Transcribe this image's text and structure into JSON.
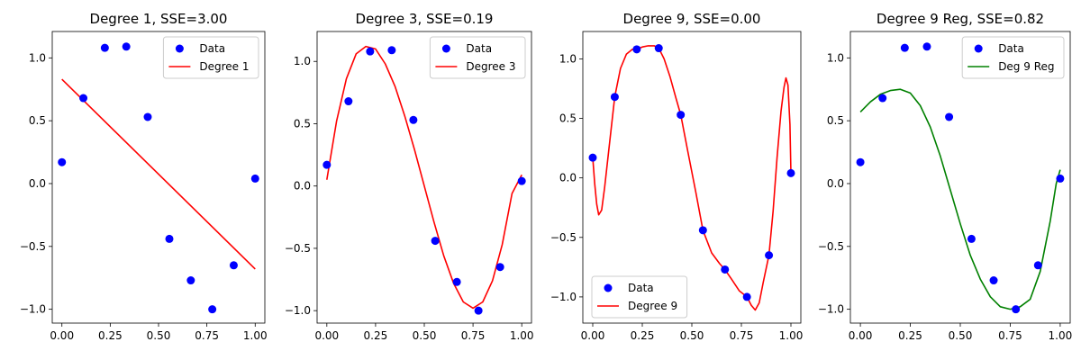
{
  "chart_data": [
    {
      "type": "scatter",
      "title": "Degree 1, SSE=3.00",
      "xlim": [
        -0.05,
        1.05
      ],
      "ylim": [
        -1.11,
        1.21
      ],
      "x_ticks": [
        "0.00",
        "0.25",
        "0.50",
        "0.75",
        "1.00"
      ],
      "y_ticks": [
        "-1.0",
        "-0.5",
        "0.0",
        "0.5",
        "1.0"
      ],
      "legend_position": "upper right",
      "series": [
        {
          "name": "Data",
          "kind": "scatter",
          "color": "#0000ff",
          "x": [
            0.0,
            0.111,
            0.222,
            0.333,
            0.444,
            0.556,
            0.667,
            0.778,
            0.889,
            1.0
          ],
          "y": [
            0.17,
            0.68,
            1.08,
            1.09,
            0.53,
            -0.44,
            -0.77,
            -1.0,
            -0.65,
            0.04
          ]
        },
        {
          "name": "Degree 1",
          "kind": "line",
          "color": "#ff0000",
          "x": [
            0.0,
            1.0
          ],
          "y": [
            0.83,
            -0.68
          ]
        }
      ]
    },
    {
      "type": "scatter",
      "title": "Degree 3, SSE=0.19",
      "xlim": [
        -0.05,
        1.05
      ],
      "ylim": [
        -1.1,
        1.24
      ],
      "x_ticks": [
        "0.00",
        "0.25",
        "0.50",
        "0.75",
        "1.00"
      ],
      "y_ticks": [
        "-1.0",
        "-0.5",
        "0.0",
        "0.5",
        "1.0"
      ],
      "legend_position": "upper right",
      "series": [
        {
          "name": "Data",
          "kind": "scatter",
          "color": "#0000ff",
          "x": [
            0.0,
            0.111,
            0.222,
            0.333,
            0.444,
            0.556,
            0.667,
            0.778,
            0.889,
            1.0
          ],
          "y": [
            0.17,
            0.68,
            1.08,
            1.09,
            0.53,
            -0.44,
            -0.77,
            -1.0,
            -0.65,
            0.04
          ]
        },
        {
          "name": "Degree 3",
          "kind": "line",
          "color": "#ff0000",
          "x": [
            0.0,
            0.05,
            0.1,
            0.15,
            0.2,
            0.25,
            0.3,
            0.35,
            0.4,
            0.45,
            0.5,
            0.55,
            0.6,
            0.65,
            0.7,
            0.75,
            0.8,
            0.85,
            0.9,
            0.95,
            1.0
          ],
          "y": [
            0.05,
            0.52,
            0.86,
            1.06,
            1.12,
            1.1,
            0.98,
            0.8,
            0.56,
            0.29,
            0.0,
            -0.29,
            -0.56,
            -0.78,
            -0.93,
            -0.98,
            -0.93,
            -0.76,
            -0.47,
            -0.06,
            0.09
          ]
        }
      ]
    },
    {
      "type": "scatter",
      "title": "Degree 9, SSE=0.00",
      "xlim": [
        -0.05,
        1.05
      ],
      "ylim": [
        -1.22,
        1.23
      ],
      "x_ticks": [
        "0.00",
        "0.25",
        "0.50",
        "0.75",
        "1.00"
      ],
      "y_ticks": [
        "-1.0",
        "-0.5",
        "0.0",
        "0.5",
        "1.0"
      ],
      "legend_position": "lower left",
      "series": [
        {
          "name": "Data",
          "kind": "scatter",
          "color": "#0000ff",
          "x": [
            0.0,
            0.111,
            0.222,
            0.333,
            0.444,
            0.556,
            0.667,
            0.778,
            0.889,
            1.0
          ],
          "y": [
            0.17,
            0.68,
            1.08,
            1.09,
            0.53,
            -0.44,
            -0.77,
            -1.0,
            -0.65,
            0.04
          ]
        },
        {
          "name": "Degree 9",
          "kind": "line",
          "color": "#ff0000",
          "x": [
            0.0,
            0.01,
            0.02,
            0.03,
            0.045,
            0.06,
            0.08,
            0.111,
            0.14,
            0.17,
            0.2,
            0.222,
            0.25,
            0.28,
            0.31,
            0.333,
            0.36,
            0.39,
            0.42,
            0.444,
            0.48,
            0.52,
            0.556,
            0.6,
            0.64,
            0.667,
            0.7,
            0.74,
            0.778,
            0.8,
            0.82,
            0.84,
            0.86,
            0.889,
            0.91,
            0.93,
            0.95,
            0.965,
            0.975,
            0.985,
            0.995,
            1.0
          ],
          "y": [
            0.17,
            -0.05,
            -0.22,
            -0.31,
            -0.27,
            -0.08,
            0.22,
            0.68,
            0.92,
            1.04,
            1.08,
            1.08,
            1.1,
            1.11,
            1.11,
            1.09,
            1.0,
            0.85,
            0.67,
            0.53,
            0.22,
            -0.12,
            -0.44,
            -0.63,
            -0.72,
            -0.77,
            -0.85,
            -0.95,
            -1.0,
            -1.07,
            -1.11,
            -1.05,
            -0.88,
            -0.65,
            -0.28,
            0.17,
            0.56,
            0.76,
            0.84,
            0.78,
            0.45,
            0.04
          ]
        }
      ]
    },
    {
      "type": "scatter",
      "title": "Degree 9 Reg, SSE=0.82",
      "xlim": [
        -0.05,
        1.05
      ],
      "ylim": [
        -1.11,
        1.21
      ],
      "x_ticks": [
        "0.00",
        "0.25",
        "0.50",
        "0.75",
        "1.00"
      ],
      "y_ticks": [
        "-1.0",
        "-0.5",
        "0.0",
        "0.5",
        "1.0"
      ],
      "legend_position": "upper right",
      "series": [
        {
          "name": "Data",
          "kind": "scatter",
          "color": "#0000ff",
          "x": [
            0.0,
            0.111,
            0.222,
            0.333,
            0.444,
            0.556,
            0.667,
            0.778,
            0.889,
            1.0
          ],
          "y": [
            0.17,
            0.68,
            1.08,
            1.09,
            0.53,
            -0.44,
            -0.77,
            -1.0,
            -0.65,
            0.04
          ]
        },
        {
          "name": "Deg 9 Reg",
          "kind": "line",
          "color": "#008000",
          "x": [
            0.0,
            0.05,
            0.1,
            0.15,
            0.2,
            0.25,
            0.3,
            0.35,
            0.4,
            0.45,
            0.5,
            0.55,
            0.6,
            0.65,
            0.7,
            0.75,
            0.8,
            0.85,
            0.9,
            0.95,
            0.98,
            1.0
          ],
          "y": [
            0.57,
            0.65,
            0.71,
            0.74,
            0.75,
            0.72,
            0.62,
            0.45,
            0.22,
            -0.05,
            -0.32,
            -0.57,
            -0.76,
            -0.9,
            -0.98,
            -1.0,
            -0.98,
            -0.92,
            -0.7,
            -0.3,
            0.0,
            0.11
          ]
        }
      ]
    }
  ]
}
